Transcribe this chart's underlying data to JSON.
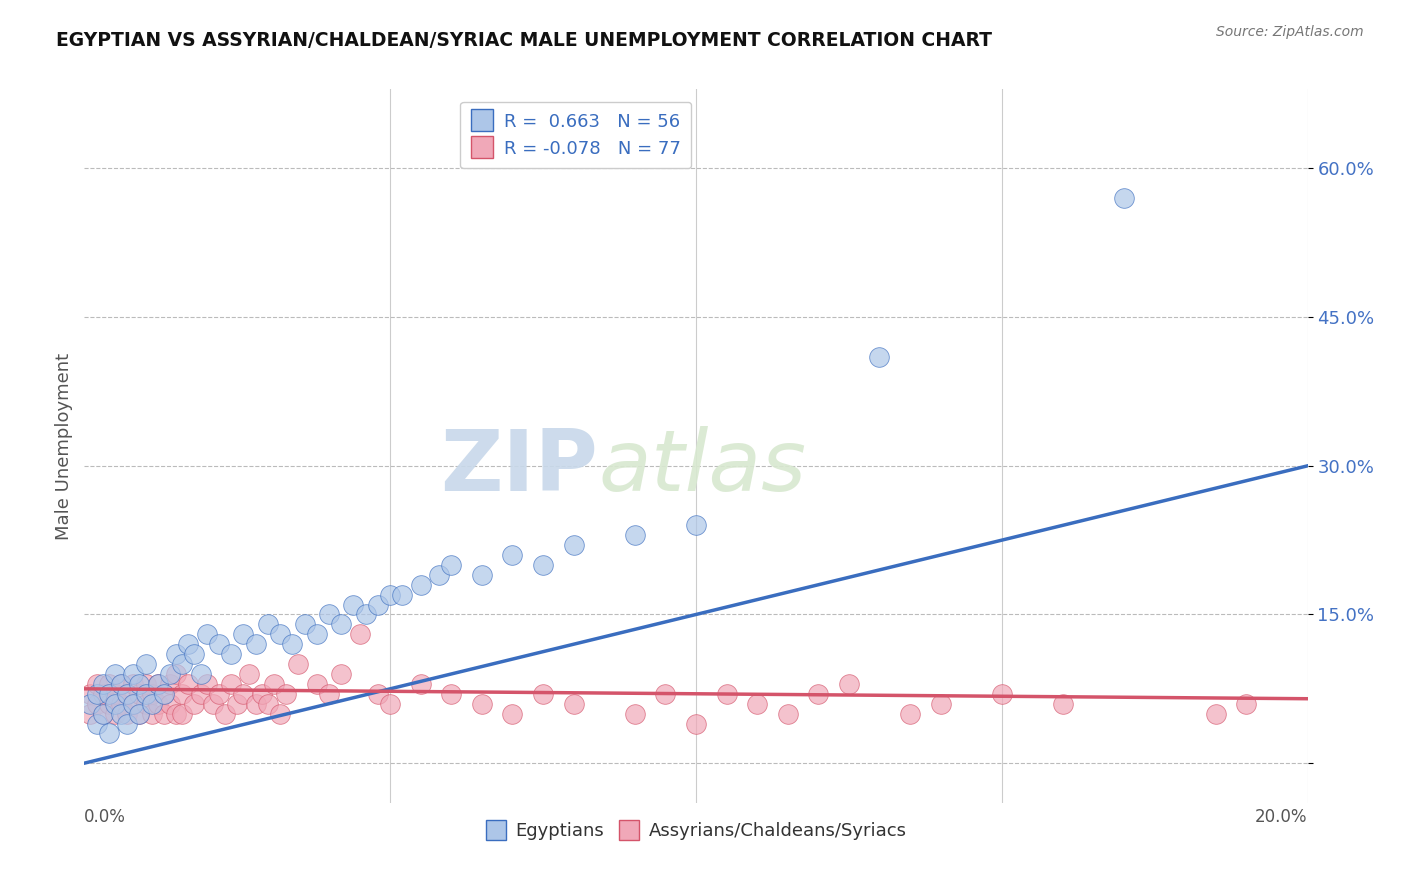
{
  "title": "EGYPTIAN VS ASSYRIAN/CHALDEAN/SYRIAC MALE UNEMPLOYMENT CORRELATION CHART",
  "source": "Source: ZipAtlas.com",
  "ylabel": "Male Unemployment",
  "y_ticks": [
    0.0,
    0.15,
    0.3,
    0.45,
    0.6
  ],
  "y_tick_labels": [
    "",
    "15.0%",
    "30.0%",
    "45.0%",
    "60.0%"
  ],
  "x_range": [
    0.0,
    0.2
  ],
  "y_range": [
    -0.04,
    0.68
  ],
  "blue_color": "#adc6e8",
  "blue_line_color": "#3a6dbf",
  "pink_color": "#f0a8b8",
  "pink_line_color": "#d4546a",
  "background_color": "#ffffff",
  "watermark_zip": "ZIP",
  "watermark_atlas": "atlas",
  "blue_dots": [
    [
      0.001,
      0.06
    ],
    [
      0.002,
      0.04
    ],
    [
      0.002,
      0.07
    ],
    [
      0.003,
      0.05
    ],
    [
      0.003,
      0.08
    ],
    [
      0.004,
      0.03
    ],
    [
      0.004,
      0.07
    ],
    [
      0.005,
      0.06
    ],
    [
      0.005,
      0.09
    ],
    [
      0.006,
      0.05
    ],
    [
      0.006,
      0.08
    ],
    [
      0.007,
      0.04
    ],
    [
      0.007,
      0.07
    ],
    [
      0.008,
      0.06
    ],
    [
      0.008,
      0.09
    ],
    [
      0.009,
      0.05
    ],
    [
      0.009,
      0.08
    ],
    [
      0.01,
      0.07
    ],
    [
      0.01,
      0.1
    ],
    [
      0.011,
      0.06
    ],
    [
      0.012,
      0.08
    ],
    [
      0.013,
      0.07
    ],
    [
      0.014,
      0.09
    ],
    [
      0.015,
      0.11
    ],
    [
      0.016,
      0.1
    ],
    [
      0.017,
      0.12
    ],
    [
      0.018,
      0.11
    ],
    [
      0.019,
      0.09
    ],
    [
      0.02,
      0.13
    ],
    [
      0.022,
      0.12
    ],
    [
      0.024,
      0.11
    ],
    [
      0.026,
      0.13
    ],
    [
      0.028,
      0.12
    ],
    [
      0.03,
      0.14
    ],
    [
      0.032,
      0.13
    ],
    [
      0.034,
      0.12
    ],
    [
      0.036,
      0.14
    ],
    [
      0.038,
      0.13
    ],
    [
      0.04,
      0.15
    ],
    [
      0.042,
      0.14
    ],
    [
      0.044,
      0.16
    ],
    [
      0.046,
      0.15
    ],
    [
      0.048,
      0.16
    ],
    [
      0.05,
      0.17
    ],
    [
      0.052,
      0.17
    ],
    [
      0.055,
      0.18
    ],
    [
      0.058,
      0.19
    ],
    [
      0.06,
      0.2
    ],
    [
      0.065,
      0.19
    ],
    [
      0.07,
      0.21
    ],
    [
      0.075,
      0.2
    ],
    [
      0.08,
      0.22
    ],
    [
      0.09,
      0.23
    ],
    [
      0.1,
      0.24
    ],
    [
      0.13,
      0.41
    ],
    [
      0.17,
      0.57
    ]
  ],
  "pink_dots": [
    [
      0.001,
      0.07
    ],
    [
      0.001,
      0.05
    ],
    [
      0.002,
      0.08
    ],
    [
      0.002,
      0.06
    ],
    [
      0.003,
      0.07
    ],
    [
      0.003,
      0.05
    ],
    [
      0.004,
      0.08
    ],
    [
      0.004,
      0.06
    ],
    [
      0.005,
      0.07
    ],
    [
      0.005,
      0.05
    ],
    [
      0.006,
      0.08
    ],
    [
      0.006,
      0.06
    ],
    [
      0.007,
      0.07
    ],
    [
      0.007,
      0.05
    ],
    [
      0.008,
      0.08
    ],
    [
      0.008,
      0.06
    ],
    [
      0.009,
      0.07
    ],
    [
      0.009,
      0.05
    ],
    [
      0.01,
      0.08
    ],
    [
      0.01,
      0.06
    ],
    [
      0.011,
      0.07
    ],
    [
      0.011,
      0.05
    ],
    [
      0.012,
      0.08
    ],
    [
      0.012,
      0.06
    ],
    [
      0.013,
      0.07
    ],
    [
      0.013,
      0.05
    ],
    [
      0.014,
      0.08
    ],
    [
      0.014,
      0.06
    ],
    [
      0.015,
      0.09
    ],
    [
      0.015,
      0.05
    ],
    [
      0.016,
      0.07
    ],
    [
      0.016,
      0.05
    ],
    [
      0.017,
      0.08
    ],
    [
      0.018,
      0.06
    ],
    [
      0.019,
      0.07
    ],
    [
      0.02,
      0.08
    ],
    [
      0.021,
      0.06
    ],
    [
      0.022,
      0.07
    ],
    [
      0.023,
      0.05
    ],
    [
      0.024,
      0.08
    ],
    [
      0.025,
      0.06
    ],
    [
      0.026,
      0.07
    ],
    [
      0.027,
      0.09
    ],
    [
      0.028,
      0.06
    ],
    [
      0.029,
      0.07
    ],
    [
      0.03,
      0.06
    ],
    [
      0.031,
      0.08
    ],
    [
      0.032,
      0.05
    ],
    [
      0.033,
      0.07
    ],
    [
      0.035,
      0.1
    ],
    [
      0.038,
      0.08
    ],
    [
      0.04,
      0.07
    ],
    [
      0.042,
      0.09
    ],
    [
      0.045,
      0.13
    ],
    [
      0.048,
      0.07
    ],
    [
      0.05,
      0.06
    ],
    [
      0.055,
      0.08
    ],
    [
      0.06,
      0.07
    ],
    [
      0.065,
      0.06
    ],
    [
      0.07,
      0.05
    ],
    [
      0.075,
      0.07
    ],
    [
      0.08,
      0.06
    ],
    [
      0.09,
      0.05
    ],
    [
      0.095,
      0.07
    ],
    [
      0.1,
      0.04
    ],
    [
      0.105,
      0.07
    ],
    [
      0.11,
      0.06
    ],
    [
      0.115,
      0.05
    ],
    [
      0.12,
      0.07
    ],
    [
      0.125,
      0.08
    ],
    [
      0.135,
      0.05
    ],
    [
      0.14,
      0.06
    ],
    [
      0.15,
      0.07
    ],
    [
      0.16,
      0.06
    ],
    [
      0.185,
      0.05
    ],
    [
      0.19,
      0.06
    ]
  ],
  "blue_line_x": [
    0.0,
    0.2
  ],
  "blue_line_y": [
    0.0,
    0.3
  ],
  "pink_line_x": [
    0.0,
    0.2
  ],
  "pink_line_y": [
    0.075,
    0.065
  ]
}
